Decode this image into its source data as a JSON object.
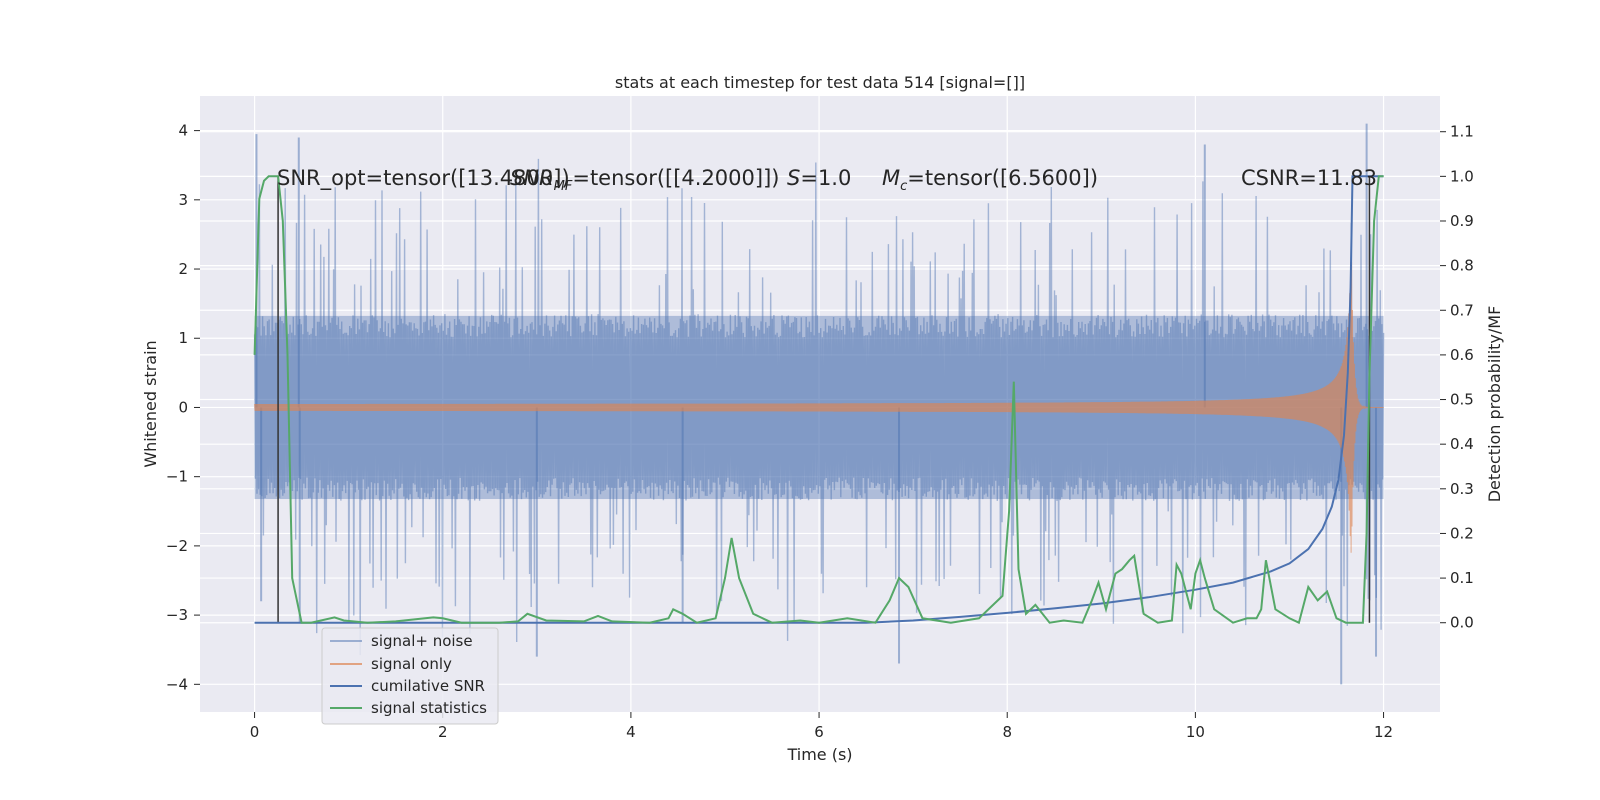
{
  "chart_data": {
    "type": "line",
    "title": "stats at each timestep for test data 514 [signal=[]]",
    "xlabel": "Time (s)",
    "ylabel_left": "Whitened strain",
    "ylabel_right": "Detection probability/MF",
    "xlim": [
      -0.58,
      12.6
    ],
    "ylim_left": [
      -4.4,
      4.5
    ],
    "ylim_right": [
      -0.2,
      1.18
    ],
    "x_ticks": [
      0,
      2,
      4,
      6,
      8,
      10,
      12
    ],
    "x_tick_labels": [
      "0",
      "2",
      "4",
      "6",
      "8",
      "10",
      "12"
    ],
    "y_left_ticks": [
      -4,
      -3,
      -2,
      -1,
      0,
      1,
      2,
      3,
      4
    ],
    "y_left_tick_labels": [
      "−4",
      "−3",
      "−2",
      "−1",
      "0",
      "1",
      "2",
      "3",
      "4"
    ],
    "y_right_ticks": [
      0.0,
      0.1,
      0.2,
      0.3,
      0.4,
      0.5,
      0.6,
      0.7,
      0.8,
      0.9,
      1.0,
      1.1
    ],
    "y_right_tick_labels": [
      "0.0",
      "0.1",
      "0.2",
      "0.3",
      "0.4",
      "0.5",
      "0.6",
      "0.7",
      "0.8",
      "0.9",
      "1.0",
      "1.1"
    ],
    "grid": true,
    "legend_position": "lower-left",
    "annotations": {
      "snr_opt": "SNR_opt=tensor([13.4800])",
      "snr_mf_prefix": "SNR",
      "snr_mf_sub": "MF",
      "snr_mf_suffix": "=tensor([[4.2000]])",
      "s_var": "S",
      "s_value": "=1.0",
      "mc_var": "M",
      "mc_sub": "c",
      "mc_value": "=tensor([6.5600])",
      "csnr": "CSNR=11.83"
    },
    "colors": {
      "noise": "#4c72b0",
      "signal": "#dd8452",
      "cumulative": "#4c72b0",
      "statistics": "#55a868",
      "marker": "#333333",
      "background": "#eaeaf2"
    },
    "series": [
      {
        "name": "signal+ noise",
        "axis": "left",
        "style": "noise-band",
        "x_range": [
          0,
          12
        ],
        "typical_amplitude": 1.35,
        "spike_peaks": [
          {
            "x": 0.02,
            "y": 3.95
          },
          {
            "x": 0.47,
            "y": 3.9
          },
          {
            "x": 0.07,
            "y": -2.8
          },
          {
            "x": 0.48,
            "y": -3.1
          },
          {
            "x": 3.0,
            "y": -3.6
          },
          {
            "x": 4.55,
            "y": -3.1
          },
          {
            "x": 6.85,
            "y": -3.7
          },
          {
            "x": 10.1,
            "y": 3.8
          },
          {
            "x": 11.55,
            "y": -4.0
          },
          {
            "x": 11.82,
            "y": 4.1
          },
          {
            "x": 11.92,
            "y": -3.6
          }
        ]
      },
      {
        "name": "signal only",
        "axis": "left",
        "style": "chirp",
        "x_range": [
          0,
          12
        ],
        "merger_time": 11.66,
        "peak_amplitude": 2.1
      },
      {
        "name": "cumilative SNR",
        "axis": "right",
        "x": [
          0.0,
          6.5,
          7.0,
          7.5,
          8.0,
          8.5,
          9.0,
          9.5,
          10.0,
          10.4,
          10.8,
          11.0,
          11.2,
          11.35,
          11.45,
          11.52,
          11.58,
          11.62,
          11.65,
          11.66,
          11.67,
          11.75,
          12.0
        ],
        "values": [
          0.0,
          0.0,
          0.005,
          0.013,
          0.022,
          0.032,
          0.043,
          0.057,
          0.074,
          0.09,
          0.115,
          0.133,
          0.165,
          0.21,
          0.26,
          0.32,
          0.42,
          0.56,
          0.75,
          0.88,
          1.0,
          1.0,
          1.0
        ]
      },
      {
        "name": "signal statistics",
        "axis": "right",
        "x": [
          0.0,
          0.05,
          0.1,
          0.15,
          0.25,
          0.3,
          0.35,
          0.4,
          0.45,
          0.5,
          0.6,
          0.85,
          0.95,
          1.2,
          1.5,
          1.9,
          2.0,
          2.2,
          2.6,
          2.8,
          2.9,
          3.1,
          3.5,
          3.65,
          3.8,
          4.2,
          4.4,
          4.45,
          4.55,
          4.7,
          4.9,
          5.0,
          5.07,
          5.15,
          5.3,
          5.5,
          5.8,
          6.0,
          6.3,
          6.6,
          6.75,
          6.85,
          6.95,
          7.1,
          7.4,
          7.7,
          7.95,
          8.02,
          8.07,
          8.12,
          8.2,
          8.3,
          8.45,
          8.6,
          8.8,
          8.9,
          8.97,
          9.05,
          9.15,
          9.22,
          9.3,
          9.35,
          9.45,
          9.6,
          9.75,
          9.8,
          9.85,
          9.95,
          10.0,
          10.05,
          10.1,
          10.2,
          10.4,
          10.55,
          10.65,
          10.7,
          10.75,
          10.85,
          11.0,
          11.1,
          11.2,
          11.3,
          11.4,
          11.5,
          11.6,
          11.7,
          11.78,
          11.82,
          11.85,
          11.9,
          11.95,
          12.0
        ],
        "values": [
          0.6,
          0.95,
          0.99,
          1.0,
          1.0,
          0.9,
          0.6,
          0.1,
          0.05,
          0.0,
          0.0,
          0.012,
          0.005,
          0.0,
          0.003,
          0.012,
          0.01,
          0.0,
          0.0,
          0.003,
          0.02,
          0.005,
          0.003,
          0.015,
          0.003,
          0.0,
          0.01,
          0.03,
          0.02,
          0.0,
          0.01,
          0.1,
          0.19,
          0.1,
          0.02,
          0.0,
          0.005,
          0.0,
          0.01,
          0.0,
          0.05,
          0.1,
          0.08,
          0.01,
          0.0,
          0.01,
          0.06,
          0.25,
          0.54,
          0.12,
          0.02,
          0.04,
          0.0,
          0.005,
          0.0,
          0.05,
          0.09,
          0.03,
          0.11,
          0.12,
          0.14,
          0.15,
          0.02,
          0.0,
          0.005,
          0.13,
          0.11,
          0.03,
          0.11,
          0.14,
          0.1,
          0.03,
          0.0,
          0.01,
          0.01,
          0.03,
          0.14,
          0.03,
          0.01,
          0.0,
          0.08,
          0.05,
          0.07,
          0.01,
          0.0,
          0.0,
          0.0,
          0.2,
          0.55,
          0.9,
          1.0,
          1.0
        ]
      },
      {
        "name": "detection markers",
        "axis": "right",
        "style": "vertical-lines",
        "x": [
          0.25,
          11.85
        ]
      }
    ],
    "legend": [
      {
        "label": "signal+ noise",
        "color": "#4c72b0"
      },
      {
        "label": "signal only",
        "color": "#dd8452"
      },
      {
        "label": "cumilative SNR",
        "color": "#4c72b0"
      },
      {
        "label": "signal statistics",
        "color": "#55a868"
      }
    ]
  }
}
